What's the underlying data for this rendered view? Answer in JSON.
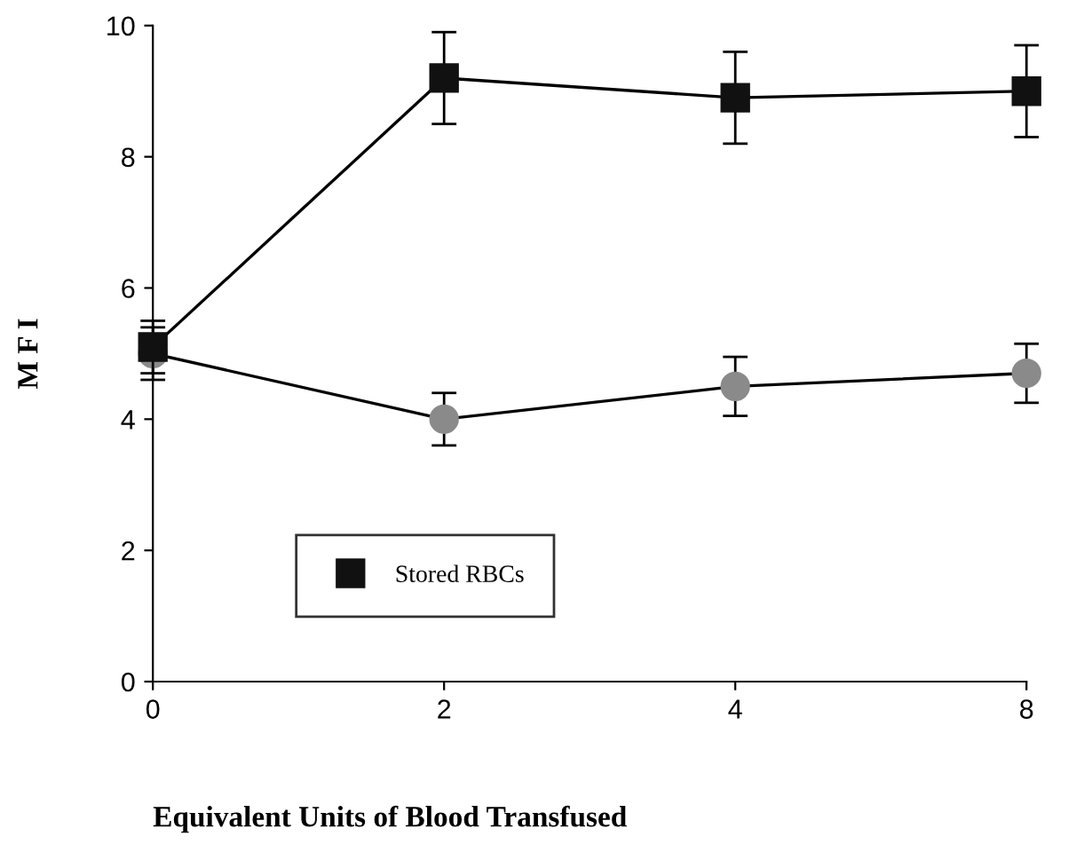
{
  "chart_data": {
    "type": "line",
    "xlabel": "Equivalent Units of Blood Transfused",
    "ylabel": "M F I",
    "categories": [
      "0",
      "2",
      "4",
      "8"
    ],
    "series": [
      {
        "name": "Stored RBCs",
        "color": "#111111",
        "marker": "square",
        "values": [
          5.1,
          9.2,
          8.9,
          9.0
        ],
        "errors": [
          0.4,
          0.7,
          0.7,
          0.7
        ]
      },
      {
        "color": "#8a8a8a",
        "marker": "circle",
        "values": [
          5.0,
          4.0,
          4.5,
          4.7
        ],
        "errors": [
          0.4,
          0.4,
          0.45,
          0.45
        ]
      }
    ],
    "ylim": [
      0,
      10
    ],
    "yticks": [
      0,
      2,
      4,
      6,
      8,
      10
    ],
    "grid": false,
    "legend": "bottom left",
    "line_style": "solid"
  }
}
